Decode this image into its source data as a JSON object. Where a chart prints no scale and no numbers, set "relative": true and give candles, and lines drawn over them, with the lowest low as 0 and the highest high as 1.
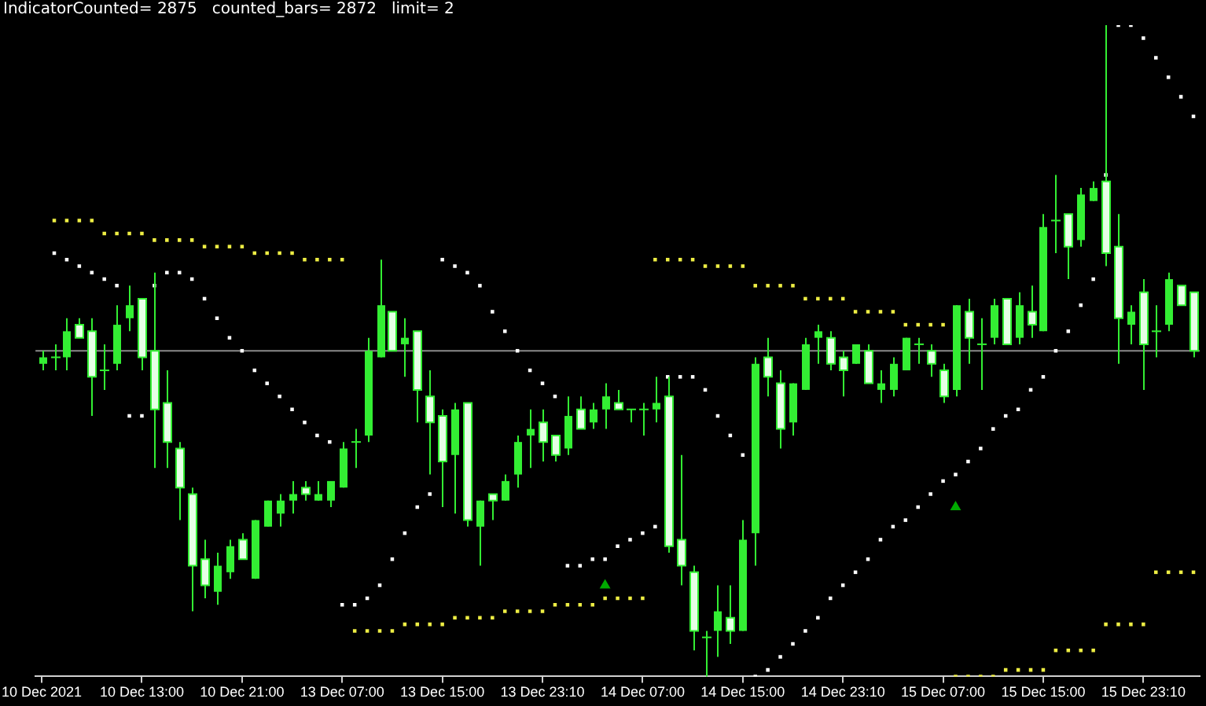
{
  "chart_data": {
    "type": "candlestick",
    "relative": true,
    "tick_labels": "x",
    "color": "#33ee33",
    "colors": [
      "#33ee33",
      "#33ee33",
      "#33ee33",
      "#e6ffe6",
      "#e6ffe6",
      "#33ee33",
      "#33ee33",
      "#33ee33",
      "#e6ffe6",
      "#e6ffe6",
      "#e6ffe6",
      "#e6ffe6",
      "#e6ffe6",
      "#e6ffe6",
      "#33ee33",
      "#33ee33",
      "#e6ffe6",
      "#33ee33",
      "#33ee33",
      "#33ee33",
      "#33ee33",
      "#e6ffe6",
      "#33ee33",
      "#33ee33",
      "#33ee33",
      "#33ee33",
      "#33ee33",
      "#33ee33",
      "#e6ffe6",
      "#33ee33",
      "#e6ffe6",
      "#e6ffe6",
      "#e6ffe6",
      "#33ee33",
      "#e6ffe6",
      "#33ee33",
      "#e6ffe6",
      "#33ee33",
      "#33ee33",
      "#33ee33",
      "#e6ffe6",
      "#e6ffe6",
      "#33ee33",
      "#e6ffe6",
      "#33ee33",
      "#33ee33",
      "#e6ffe6",
      "#33ee33",
      "#33ee33",
      "#33ee33",
      "#e6ffe6",
      "#e6ffe6",
      "#e6ffe6",
      "#33ee33",
      "#33ee33",
      "#e6ffe6",
      "#33ee33",
      "#33ee33",
      "#e6ffe6",
      "#e6ffe6",
      "#33ee33",
      "#33ee33",
      "#33ee33",
      "#e6ffe6",
      "#e6ffe6",
      "#33ee33",
      "#e6ffe6",
      "#33ee33",
      "#33ee33",
      "#33ee33",
      "#33ee33",
      "#e6ffe6",
      "#e6ffe6",
      "#33ee33",
      "#e6ffe6",
      "#33ee33",
      "#33ee33",
      "#e6ffe6",
      "#33ee33",
      "#e6ffe6",
      "#33ee33",
      "#33ee33",
      "#e6ffe6",
      "#33ee33",
      "#33ee33",
      "#e6ffe6",
      "#e6ffe6",
      "#33ee33",
      "#e6ffe6",
      "#33ee33",
      "#33ee33",
      "#e6ffe6",
      "#e6ffe6"
    ],
    "annotations": [
      "IndicatorCounted= 2875   counted_bars= 2872   limit= 2"
    ],
    "categories": [
      "10 Dec 2021",
      null,
      null,
      null,
      null,
      null,
      null,
      null,
      "10 Dec 13:00",
      null,
      null,
      null,
      null,
      null,
      null,
      null,
      "10 Dec 21:00",
      null,
      null,
      null,
      null,
      null,
      null,
      null,
      "13 Dec 07:00",
      null,
      null,
      null,
      null,
      null,
      null,
      null,
      "13 Dec 15:00",
      null,
      null,
      null,
      null,
      null,
      null,
      null,
      "13 Dec 23:10",
      null,
      null,
      null,
      null,
      null,
      null,
      null,
      "14 Dec 07:00",
      null,
      null,
      null,
      null,
      null,
      null,
      null,
      "14 Dec 15:00",
      null,
      null,
      null,
      null,
      null,
      null,
      null,
      "14 Dec 23:10",
      null,
      null,
      null,
      null,
      null,
      null,
      null,
      "15 Dec 07:00",
      null,
      null,
      null,
      null,
      null,
      null,
      null,
      "15 Dec 15:00",
      null,
      null,
      null,
      null,
      null,
      null,
      null,
      "15 Dec 23:10",
      null,
      null,
      null,
      null
    ],
    "ohlc": [
      [
        0.48,
        0.5,
        0.47,
        0.49
      ],
      [
        0.49,
        0.51,
        0.47,
        0.49
      ],
      [
        0.49,
        0.55,
        0.47,
        0.53
      ],
      [
        0.54,
        0.55,
        0.52,
        0.52
      ],
      [
        0.53,
        0.55,
        0.4,
        0.46
      ],
      [
        0.47,
        0.51,
        0.44,
        0.47
      ],
      [
        0.48,
        0.57,
        0.47,
        0.54
      ],
      [
        0.55,
        0.6,
        0.53,
        0.57
      ],
      [
        0.58,
        0.58,
        0.47,
        0.49
      ],
      [
        0.5,
        0.62,
        0.32,
        0.41
      ],
      [
        0.42,
        0.47,
        0.32,
        0.36
      ],
      [
        0.35,
        0.36,
        0.24,
        0.29
      ],
      [
        0.28,
        0.29,
        0.1,
        0.17
      ],
      [
        0.18,
        0.21,
        0.12,
        0.14
      ],
      [
        0.13,
        0.19,
        0.11,
        0.17
      ],
      [
        0.16,
        0.21,
        0.15,
        0.2
      ],
      [
        0.21,
        0.22,
        0.18,
        0.18
      ],
      [
        0.15,
        0.24,
        0.15,
        0.24
      ],
      [
        0.23,
        0.27,
        0.23,
        0.27
      ],
      [
        0.25,
        0.28,
        0.23,
        0.27
      ],
      [
        0.27,
        0.3,
        0.25,
        0.28
      ],
      [
        0.29,
        0.3,
        0.27,
        0.28
      ],
      [
        0.27,
        0.3,
        0.27,
        0.28
      ],
      [
        0.27,
        0.3,
        0.26,
        0.3
      ],
      [
        0.29,
        0.36,
        0.29,
        0.35
      ],
      [
        0.36,
        0.38,
        0.32,
        0.36
      ],
      [
        0.37,
        0.52,
        0.36,
        0.5
      ],
      [
        0.49,
        0.64,
        0.49,
        0.57
      ],
      [
        0.56,
        0.56,
        0.5,
        0.5
      ],
      [
        0.51,
        0.55,
        0.46,
        0.52
      ],
      [
        0.53,
        0.53,
        0.39,
        0.44
      ],
      [
        0.43,
        0.47,
        0.31,
        0.39
      ],
      [
        0.4,
        0.41,
        0.26,
        0.33
      ],
      [
        0.34,
        0.42,
        0.25,
        0.41
      ],
      [
        0.42,
        0.42,
        0.23,
        0.24
      ],
      [
        0.23,
        0.27,
        0.17,
        0.27
      ],
      [
        0.28,
        0.28,
        0.24,
        0.27
      ],
      [
        0.27,
        0.31,
        0.27,
        0.3
      ],
      [
        0.31,
        0.37,
        0.29,
        0.36
      ],
      [
        0.37,
        0.41,
        0.32,
        0.38
      ],
      [
        0.39,
        0.41,
        0.33,
        0.36
      ],
      [
        0.37,
        0.37,
        0.33,
        0.34
      ],
      [
        0.35,
        0.43,
        0.34,
        0.4
      ],
      [
        0.41,
        0.43,
        0.38,
        0.38
      ],
      [
        0.39,
        0.42,
        0.38,
        0.41
      ],
      [
        0.41,
        0.45,
        0.38,
        0.43
      ],
      [
        0.42,
        0.44,
        0.41,
        0.41
      ],
      [
        0.41,
        0.41,
        0.39,
        0.41
      ],
      [
        0.41,
        0.42,
        0.37,
        0.41
      ],
      [
        0.41,
        0.46,
        0.39,
        0.42
      ],
      [
        0.43,
        0.46,
        0.19,
        0.2
      ],
      [
        0.21,
        0.34,
        0.14,
        0.17
      ],
      [
        0.16,
        0.17,
        0.04,
        0.07
      ],
      [
        0.06,
        0.07,
        0.0,
        0.06
      ],
      [
        0.07,
        0.14,
        0.03,
        0.1
      ],
      [
        0.09,
        0.14,
        0.05,
        0.07
      ],
      [
        0.07,
        0.24,
        0.07,
        0.21
      ],
      [
        0.22,
        0.49,
        0.17,
        0.48
      ],
      [
        0.49,
        0.52,
        0.43,
        0.46
      ],
      [
        0.45,
        0.47,
        0.35,
        0.38
      ],
      [
        0.39,
        0.45,
        0.37,
        0.45
      ],
      [
        0.44,
        0.52,
        0.44,
        0.51
      ],
      [
        0.52,
        0.54,
        0.48,
        0.53
      ],
      [
        0.52,
        0.53,
        0.47,
        0.48
      ],
      [
        0.49,
        0.5,
        0.43,
        0.47
      ],
      [
        0.48,
        0.51,
        0.48,
        0.51
      ],
      [
        0.5,
        0.51,
        0.45,
        0.45
      ],
      [
        0.44,
        0.47,
        0.42,
        0.45
      ],
      [
        0.44,
        0.49,
        0.43,
        0.48
      ],
      [
        0.47,
        0.52,
        0.47,
        0.52
      ],
      [
        0.51,
        0.52,
        0.48,
        0.51
      ],
      [
        0.5,
        0.51,
        0.46,
        0.48
      ],
      [
        0.47,
        0.48,
        0.42,
        0.43
      ],
      [
        0.44,
        0.57,
        0.43,
        0.57
      ],
      [
        0.56,
        0.58,
        0.48,
        0.52
      ],
      [
        0.51,
        0.55,
        0.44,
        0.51
      ],
      [
        0.52,
        0.58,
        0.51,
        0.57
      ],
      [
        0.58,
        0.58,
        0.51,
        0.51
      ],
      [
        0.52,
        0.59,
        0.51,
        0.57
      ],
      [
        0.56,
        0.6,
        0.52,
        0.54
      ],
      [
        0.53,
        0.71,
        0.53,
        0.69
      ],
      [
        0.7,
        0.77,
        0.65,
        0.7
      ],
      [
        0.71,
        0.71,
        0.61,
        0.66
      ],
      [
        0.67,
        0.75,
        0.66,
        0.74
      ],
      [
        0.73,
        0.76,
        0.73,
        0.75
      ],
      [
        0.76,
        1.0,
        0.63,
        0.65
      ],
      [
        0.66,
        0.71,
        0.48,
        0.55
      ],
      [
        0.54,
        0.57,
        0.51,
        0.56
      ],
      [
        0.59,
        0.61,
        0.44,
        0.51
      ],
      [
        0.53,
        0.57,
        0.49,
        0.53
      ],
      [
        0.54,
        0.62,
        0.53,
        0.61
      ],
      [
        0.6,
        0.6,
        0.57,
        0.57
      ],
      [
        0.59,
        0.59,
        0.49,
        0.5
      ]
    ],
    "series": [
      {
        "type": "scatter",
        "marker": "square",
        "color": "#ffffff",
        "values": [
          null,
          0.65,
          0.64,
          0.63,
          0.62,
          0.61,
          0.6,
          0.4,
          0.4,
          0.6,
          0.62,
          0.62,
          0.61,
          0.58,
          0.55,
          0.52,
          0.5,
          0.47,
          0.45,
          0.43,
          0.41,
          0.39,
          0.37,
          0.36,
          0.11,
          0.11,
          0.12,
          0.14,
          0.18,
          0.22,
          0.26,
          0.28,
          0.64,
          0.63,
          0.62,
          0.6,
          0.56,
          0.53,
          0.5,
          0.47,
          0.45,
          0.43,
          0.17,
          0.17,
          0.18,
          0.18,
          0.2,
          0.21,
          0.22,
          0.23,
          0.46,
          0.46,
          0.46,
          0.44,
          0.4,
          0.37,
          0.34,
          0.0,
          0.01,
          0.03,
          0.05,
          0.07,
          0.09,
          0.12,
          0.14,
          0.16,
          0.18,
          0.21,
          0.23,
          0.24,
          0.26,
          0.28,
          0.3,
          0.31,
          0.33,
          0.35,
          0.38,
          0.4,
          0.41,
          0.44,
          0.46,
          0.5,
          0.53,
          0.57,
          0.61,
          0.77,
          1.0,
          1.0,
          0.98,
          0.95,
          0.92,
          0.89,
          0.86
        ]
      },
      {
        "type": "scatter",
        "marker": "square",
        "color": "#eeee44",
        "values": [
          null,
          0.7,
          0.7,
          0.7,
          0.7,
          0.68,
          0.68,
          0.68,
          0.68,
          0.67,
          0.67,
          0.67,
          0.67,
          0.66,
          0.66,
          0.66,
          0.66,
          0.65,
          0.65,
          0.65,
          0.65,
          0.64,
          0.64,
          0.64,
          0.64,
          0.07,
          0.07,
          0.07,
          0.07,
          0.08,
          0.08,
          0.08,
          0.08,
          0.09,
          0.09,
          0.09,
          0.09,
          0.1,
          0.1,
          0.1,
          0.1,
          0.11,
          0.11,
          0.11,
          0.11,
          0.12,
          0.12,
          0.12,
          0.12,
          0.64,
          0.64,
          0.64,
          0.64,
          0.63,
          0.63,
          0.63,
          0.63,
          0.6,
          0.6,
          0.6,
          0.6,
          0.58,
          0.58,
          0.58,
          0.58,
          0.56,
          0.56,
          0.56,
          0.56,
          0.54,
          0.54,
          0.54,
          0.54,
          0.0,
          0.0,
          0.0,
          0.0,
          0.01,
          0.01,
          0.01,
          0.01,
          0.04,
          0.04,
          0.04,
          0.04,
          0.08,
          0.08,
          0.08,
          0.08,
          0.16,
          0.16,
          0.16,
          0.16
        ]
      },
      {
        "type": "scatter",
        "marker": "triangle",
        "color": "#00aa00",
        "values": [
          null,
          null,
          null,
          null,
          null,
          null,
          null,
          null,
          null,
          null,
          null,
          null,
          null,
          null,
          null,
          null,
          null,
          null,
          null,
          null,
          null,
          null,
          null,
          null,
          null,
          null,
          null,
          null,
          null,
          null,
          null,
          null,
          null,
          null,
          null,
          null,
          null,
          null,
          null,
          null,
          null,
          null,
          null,
          null,
          null,
          0.14,
          null,
          null,
          null,
          null,
          null,
          null,
          null,
          null,
          null,
          null,
          null,
          null,
          null,
          null,
          null,
          null,
          null,
          null,
          null,
          null,
          null,
          null,
          null,
          null,
          null,
          null,
          null,
          0.26,
          null,
          null,
          null,
          null,
          null,
          null,
          null,
          null,
          null,
          null,
          null,
          null,
          null,
          null,
          null,
          null,
          null,
          null,
          null
        ]
      }
    ],
    "ref_lines": [
      {
        "axis": "y",
        "value": 0.5,
        "color": "#8a8a8a"
      }
    ]
  }
}
